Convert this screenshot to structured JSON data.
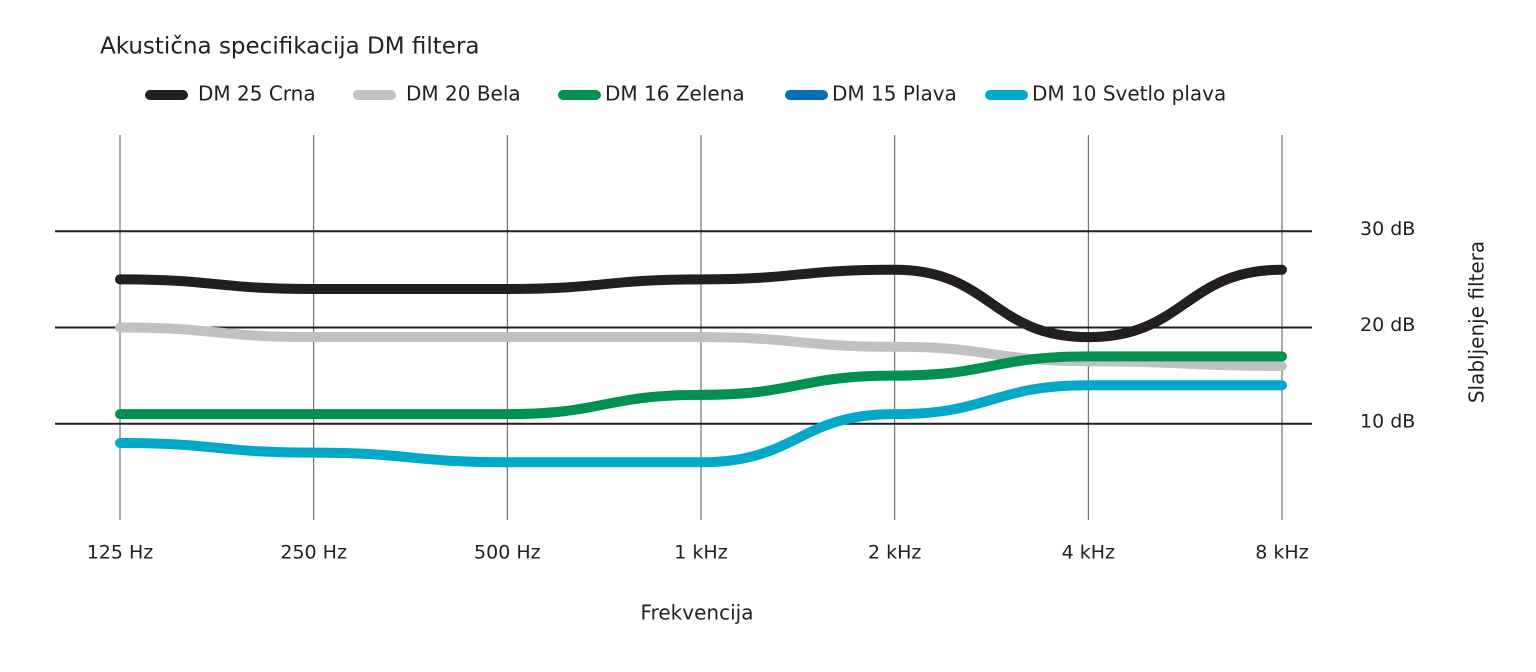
{
  "chart_data": {
    "type": "line",
    "title": "Akustična specifikacija DM filtera",
    "x_label": "Frekvencija",
    "y_label": "Slabljenje filtera",
    "categories": [
      "125 Hz",
      "250 Hz",
      "500 Hz",
      "1 kHz",
      "2 kHz",
      "4 kHz",
      "8 kHz"
    ],
    "ylim": [
      0,
      40
    ],
    "yticks": [
      {
        "value": 10,
        "label": "10 dB"
      },
      {
        "value": 20,
        "label": "20 dB"
      },
      {
        "value": 30,
        "label": "30 dB"
      }
    ],
    "grid": true,
    "series": [
      {
        "name": "DM 25 Crna",
        "color": "#231f20",
        "values": [
          25,
          24,
          24,
          25,
          26,
          19,
          26
        ]
      },
      {
        "name": "DM 20 Bela",
        "color": "#c1c1c3",
        "values": [
          20,
          19,
          19,
          19,
          18,
          16.5,
          16
        ]
      },
      {
        "name": "DM 16 Zelena",
        "color": "#00914f",
        "values": [
          11,
          11,
          11,
          13,
          15,
          17,
          17
        ]
      },
      {
        "name": "DM 15 Plava",
        "color": "#0070b8",
        "values": [
          null,
          null,
          null,
          null,
          null,
          null,
          null
        ]
      },
      {
        "name": "DM 10 Svetlo plava",
        "color": "#00a9c8",
        "values": [
          8,
          7,
          6,
          6,
          11,
          14,
          14
        ]
      }
    ]
  }
}
